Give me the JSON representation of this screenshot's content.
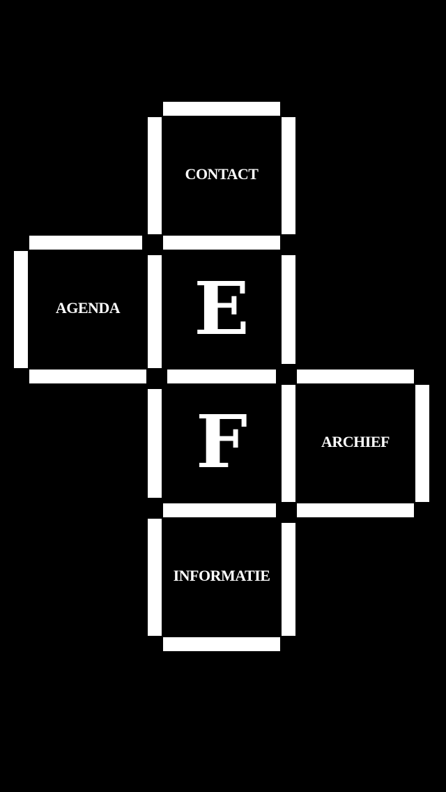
{
  "colors": {
    "background": "#000000",
    "foreground": "#ffffff"
  },
  "logo": {
    "letter_top": "E",
    "letter_bottom": "F"
  },
  "menu": {
    "contact": "CONTACT",
    "agenda": "AGENDA",
    "archief": "ARCHIEF",
    "informatie": "INFORMATIE"
  }
}
